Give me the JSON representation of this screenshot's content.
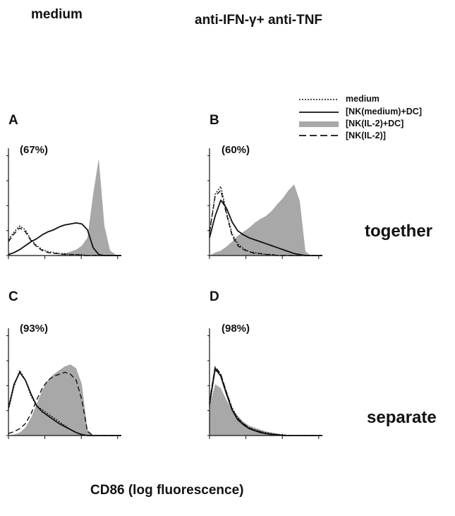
{
  "headers": {
    "left": "medium",
    "right": "anti-IFN-γ+ anti-TNF"
  },
  "legend": [
    {
      "label": "medium",
      "style": "dotted"
    },
    {
      "label": "[NK(medium)+DC]",
      "style": "solid"
    },
    {
      "label": "[NK(IL-2)+DC]",
      "style": "filled"
    },
    {
      "label": "[NK(IL-2)]",
      "style": "dashed"
    }
  ],
  "row_labels": {
    "top": "together",
    "bottom": "separate"
  },
  "xlabel": "CD86 (log fluorescence)",
  "colors": {
    "fill": "#a8a8a8",
    "line": "#111111"
  },
  "chart_data": [
    {
      "type": "area",
      "panel": "A",
      "percent_label": "(67%)",
      "x": [
        0,
        0.05,
        0.1,
        0.15,
        0.2,
        0.25,
        0.3,
        0.35,
        0.4,
        0.45,
        0.5,
        0.55,
        0.6,
        0.65,
        0.7,
        0.75,
        0.8,
        0.85,
        0.9,
        0.95,
        1
      ],
      "series": [
        {
          "name": "medium",
          "style": "dotted",
          "values": [
            0.16,
            0.24,
            0.3,
            0.26,
            0.16,
            0.1,
            0.06,
            0.04,
            0.03,
            0.02,
            0.02,
            0.01,
            0.01,
            0.01,
            0,
            0,
            0,
            0,
            0,
            0,
            0
          ]
        },
        {
          "name": "[NK(medium)+DC]",
          "style": "solid",
          "values": [
            0.01,
            0.03,
            0.06,
            0.1,
            0.14,
            0.17,
            0.21,
            0.24,
            0.26,
            0.29,
            0.31,
            0.32,
            0.33,
            0.32,
            0.26,
            0.08,
            0.01,
            0,
            0,
            0,
            0
          ]
        },
        {
          "name": "[NK(IL-2)+DC]",
          "style": "filled",
          "values": [
            0,
            0,
            0,
            0,
            0,
            0,
            0,
            0,
            0,
            0.01,
            0.02,
            0.04,
            0.06,
            0.1,
            0.18,
            0.62,
            0.98,
            0.3,
            0.05,
            0.01,
            0
          ]
        },
        {
          "name": "[NK(IL-2)]",
          "style": "dashed",
          "values": [
            0.14,
            0.22,
            0.28,
            0.24,
            0.15,
            0.09,
            0.05,
            0.03,
            0.02,
            0.02,
            0.01,
            0.01,
            0.01,
            0,
            0,
            0,
            0,
            0,
            0,
            0,
            0
          ]
        }
      ]
    },
    {
      "type": "area",
      "panel": "B",
      "percent_label": "(60%)",
      "x": [
        0,
        0.05,
        0.1,
        0.15,
        0.2,
        0.25,
        0.3,
        0.35,
        0.4,
        0.45,
        0.5,
        0.55,
        0.6,
        0.65,
        0.7,
        0.75,
        0.8,
        0.85,
        0.9,
        0.95,
        1
      ],
      "series": [
        {
          "name": "medium",
          "style": "dotted",
          "values": [
            0.22,
            0.62,
            0.7,
            0.44,
            0.22,
            0.12,
            0.07,
            0.04,
            0.03,
            0.02,
            0.01,
            0.01,
            0,
            0,
            0,
            0,
            0,
            0,
            0,
            0,
            0
          ]
        },
        {
          "name": "[NK(medium)+DC]",
          "style": "solid",
          "values": [
            0.18,
            0.4,
            0.56,
            0.48,
            0.34,
            0.25,
            0.21,
            0.18,
            0.16,
            0.14,
            0.12,
            0.1,
            0.08,
            0.06,
            0.04,
            0.02,
            0.01,
            0,
            0,
            0,
            0
          ]
        },
        {
          "name": "[NK(IL-2)+DC]",
          "style": "filled",
          "values": [
            0,
            0.03,
            0.05,
            0.09,
            0.14,
            0.2,
            0.24,
            0.28,
            0.33,
            0.37,
            0.4,
            0.45,
            0.52,
            0.58,
            0.66,
            0.72,
            0.55,
            0.04,
            0,
            0,
            0
          ]
        },
        {
          "name": "[NK(IL-2)]",
          "style": "dashed",
          "values": [
            0.24,
            0.6,
            0.66,
            0.42,
            0.2,
            0.1,
            0.06,
            0.04,
            0.02,
            0.02,
            0.01,
            0.01,
            0,
            0,
            0,
            0,
            0,
            0,
            0,
            0,
            0
          ]
        }
      ]
    },
    {
      "type": "area",
      "panel": "C",
      "percent_label": "(93%)",
      "x": [
        0,
        0.05,
        0.1,
        0.15,
        0.2,
        0.25,
        0.3,
        0.35,
        0.4,
        0.45,
        0.5,
        0.55,
        0.6,
        0.65,
        0.7,
        0.75,
        0.8,
        0.85,
        0.9,
        0.95,
        1
      ],
      "series": [
        {
          "name": "medium",
          "style": "dotted",
          "values": [
            0.26,
            0.5,
            0.66,
            0.56,
            0.4,
            0.3,
            0.26,
            0.22,
            0.18,
            0.14,
            0.1,
            0.06,
            0.03,
            0.01,
            0,
            0,
            0,
            0,
            0,
            0,
            0
          ]
        },
        {
          "name": "[NK(medium)+DC]",
          "style": "solid",
          "values": [
            0.28,
            0.52,
            0.64,
            0.56,
            0.42,
            0.3,
            0.24,
            0.2,
            0.16,
            0.12,
            0.09,
            0.06,
            0.03,
            0.01,
            0,
            0,
            0,
            0,
            0,
            0,
            0
          ]
        },
        {
          "name": "[NK(IL-2)+DC]",
          "style": "filled",
          "values": [
            0,
            0.01,
            0.03,
            0.08,
            0.18,
            0.32,
            0.46,
            0.56,
            0.62,
            0.66,
            0.7,
            0.72,
            0.68,
            0.52,
            0.06,
            0,
            0,
            0,
            0,
            0,
            0
          ]
        },
        {
          "name": "[NK(IL-2)]",
          "style": "dashed",
          "values": [
            0.02,
            0.04,
            0.07,
            0.12,
            0.22,
            0.36,
            0.48,
            0.56,
            0.6,
            0.62,
            0.64,
            0.62,
            0.56,
            0.36,
            0.04,
            0,
            0,
            0,
            0,
            0,
            0
          ]
        }
      ]
    },
    {
      "type": "area",
      "panel": "D",
      "percent_label": "(98%)",
      "x": [
        0,
        0.05,
        0.1,
        0.15,
        0.2,
        0.25,
        0.3,
        0.35,
        0.4,
        0.45,
        0.5,
        0.55,
        0.6,
        0.65,
        0.7,
        0.75,
        0.8,
        0.85,
        0.9,
        0.95,
        1
      ],
      "series": [
        {
          "name": "medium",
          "style": "dotted",
          "values": [
            0.3,
            0.66,
            0.62,
            0.44,
            0.28,
            0.18,
            0.12,
            0.08,
            0.06,
            0.04,
            0.03,
            0.02,
            0.01,
            0.01,
            0,
            0,
            0,
            0,
            0,
            0,
            0
          ]
        },
        {
          "name": "[NK(medium)+DC]",
          "style": "solid",
          "values": [
            0.32,
            0.68,
            0.6,
            0.42,
            0.26,
            0.16,
            0.11,
            0.07,
            0.05,
            0.03,
            0.02,
            0.01,
            0.01,
            0,
            0,
            0,
            0,
            0,
            0,
            0,
            0
          ]
        },
        {
          "name": "[NK(IL-2)+DC]",
          "style": "filled",
          "values": [
            0.3,
            0.52,
            0.48,
            0.36,
            0.26,
            0.2,
            0.14,
            0.1,
            0.08,
            0.06,
            0.04,
            0.03,
            0.02,
            0.01,
            0,
            0,
            0,
            0,
            0,
            0,
            0
          ]
        },
        {
          "name": "[NK(IL-2)]",
          "style": "dashed",
          "values": [
            0.34,
            0.7,
            0.62,
            0.44,
            0.27,
            0.17,
            0.12,
            0.08,
            0.05,
            0.04,
            0.02,
            0.01,
            0.01,
            0,
            0,
            0,
            0,
            0,
            0,
            0,
            0
          ]
        }
      ]
    }
  ]
}
